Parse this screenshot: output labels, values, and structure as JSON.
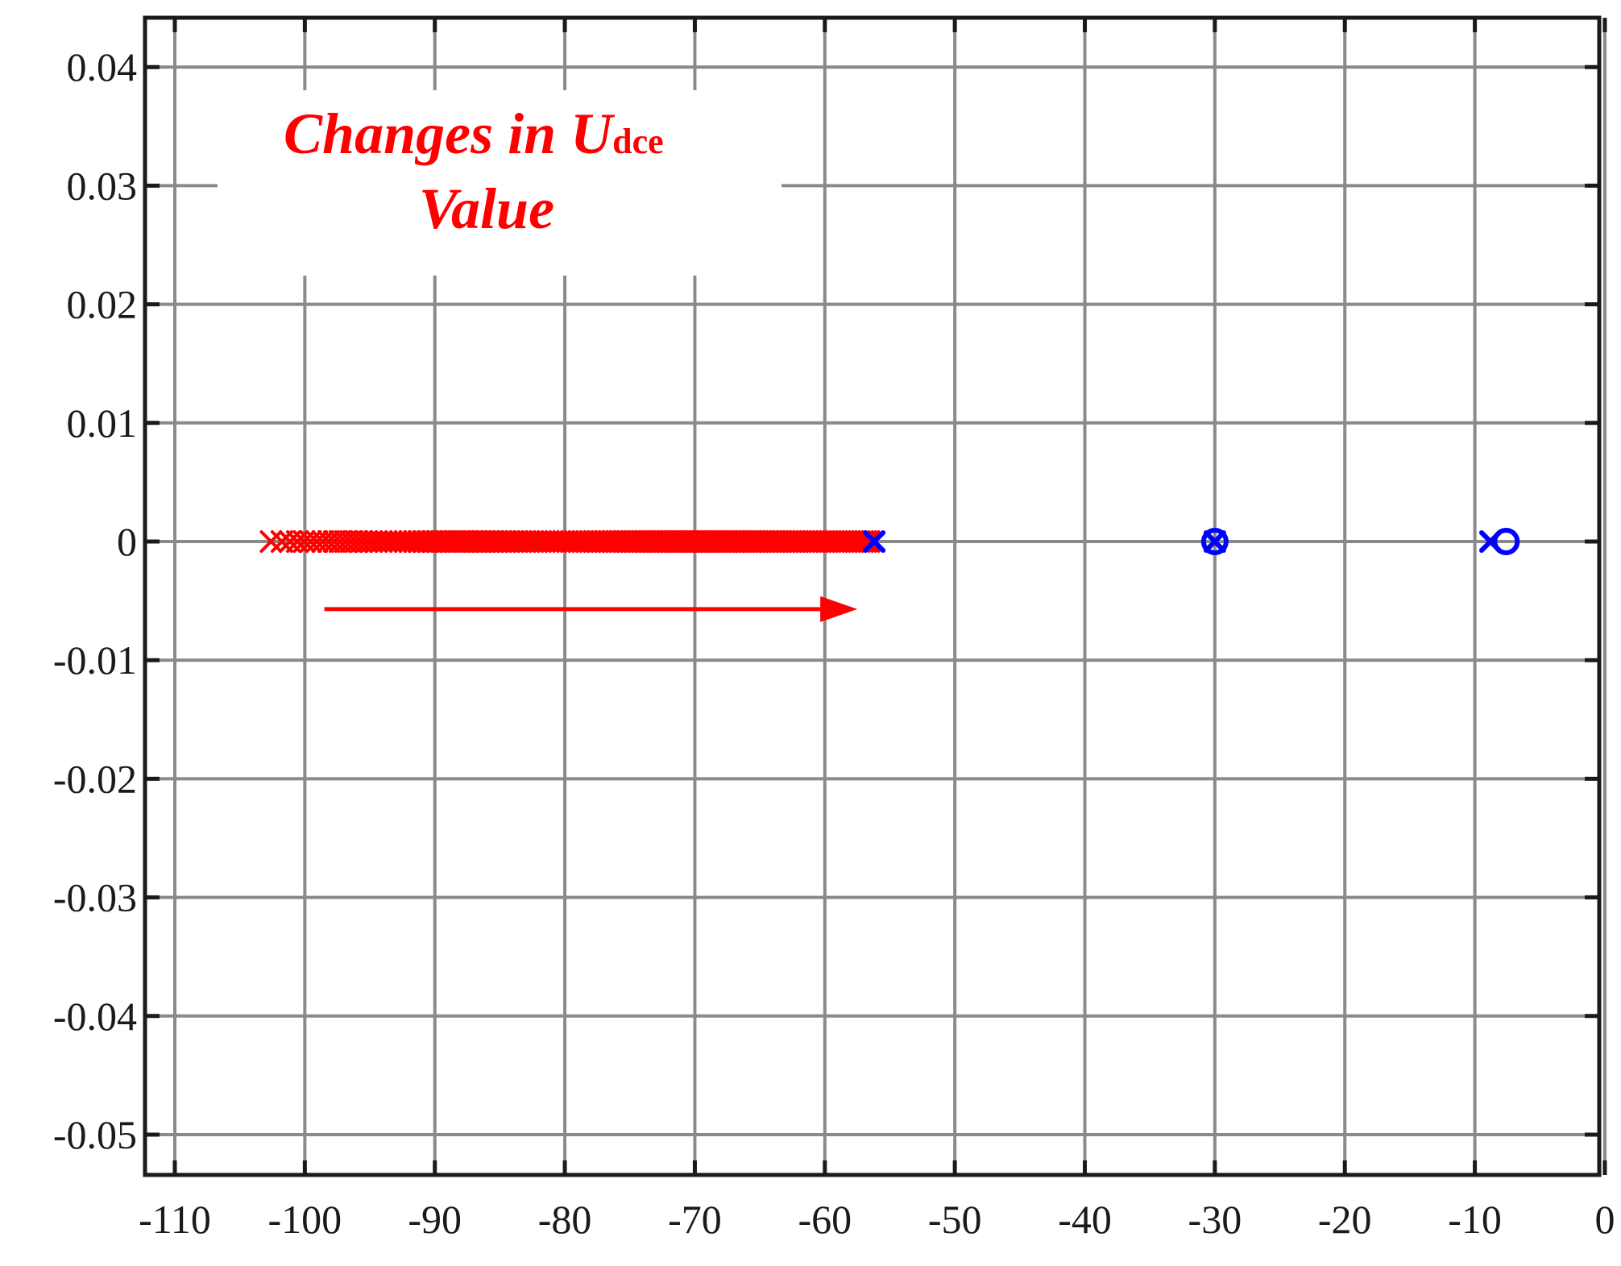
{
  "chart_data": {
    "type": "scatter",
    "title": "",
    "xlabel": "",
    "ylabel": "",
    "xlim": [
      -110,
      0
    ],
    "ylim": [
      -0.05,
      0.04
    ],
    "grid": true,
    "xticks": [
      -110,
      -100,
      -90,
      -80,
      -70,
      -60,
      -50,
      -40,
      -30,
      -20,
      -10,
      0
    ],
    "xtick_labels": [
      "-110",
      "-100",
      "-90",
      "-80",
      "-70",
      "-60",
      "-50",
      "-40",
      "-30",
      "-20",
      "-10",
      "0"
    ],
    "yticks": [
      0.04,
      0.03,
      0.02,
      0.01,
      0,
      -0.01,
      -0.02,
      -0.03,
      -0.04,
      -0.05
    ],
    "ytick_labels": [
      "0.04",
      "0.03",
      "0.02",
      "0.01",
      "0",
      "-0.01",
      "-0.02",
      "-0.03",
      "-0.04",
      "-0.05"
    ],
    "annotation": {
      "line1_main": "Changes in U",
      "line1_sub": "dce",
      "line2": "Value",
      "color": "#ff0000"
    },
    "arrow": {
      "from": [
        -98.5,
        -0.0057
      ],
      "to": [
        -57.5,
        -0.0057
      ],
      "color": "#ff0000"
    },
    "series": [
      {
        "marker": "x",
        "color": "#ff0000",
        "x_start": -102.6,
        "x_end": -56.6,
        "count": 150,
        "y": 0,
        "extra_points": [
          [
            -8.8,
            0
          ],
          [
            -30.0,
            0
          ]
        ]
      },
      {
        "marker": "x",
        "color": "#0000ff",
        "points": [
          [
            -56.2,
            0
          ],
          [
            -30.0,
            0
          ],
          [
            -8.8,
            0
          ]
        ]
      },
      {
        "marker": "o",
        "color": "#0000ff",
        "points": [
          [
            -30.0,
            0
          ],
          [
            -7.6,
            0
          ]
        ]
      }
    ]
  }
}
